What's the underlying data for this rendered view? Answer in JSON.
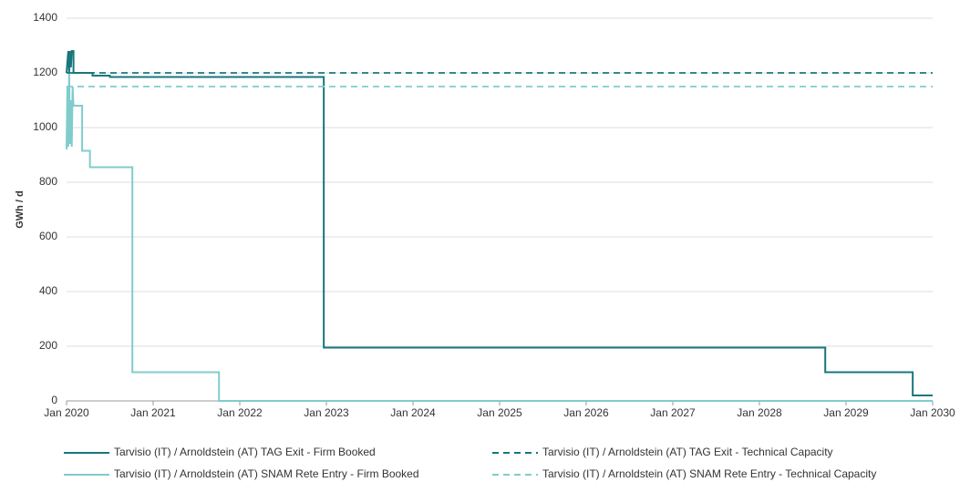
{
  "chart_data": {
    "type": "line",
    "y_label": "GWh / d",
    "xlim": [
      2020,
      2030
    ],
    "xticks": [
      {
        "value": 2020,
        "label": "Jan 2020"
      },
      {
        "value": 2021,
        "label": "Jan 2021"
      },
      {
        "value": 2022,
        "label": "Jan 2022"
      },
      {
        "value": 2023,
        "label": "Jan 2023"
      },
      {
        "value": 2024,
        "label": "Jan 2024"
      },
      {
        "value": 2025,
        "label": "Jan 2025"
      },
      {
        "value": 2026,
        "label": "Jan 2026"
      },
      {
        "value": 2027,
        "label": "Jan 2027"
      },
      {
        "value": 2028,
        "label": "Jan 2028"
      },
      {
        "value": 2029,
        "label": "Jan 2029"
      },
      {
        "value": 2030,
        "label": "Jan 2030"
      }
    ],
    "ylim": [
      0,
      1400
    ],
    "yticks": [
      0,
      200,
      400,
      600,
      800,
      1000,
      1200,
      1400
    ],
    "grid": true,
    "legend": "bottom",
    "series": [
      {
        "name": "Tarvisio (IT) / Arnoldstein (AT) TAG Exit - Firm Booked",
        "color": "#17777d",
        "dashed": false,
        "x": [
          2020,
          2020.02,
          2020.03,
          2020.04,
          2020.05,
          2020.06,
          2020.08,
          2020.08,
          2020.3,
          2020.3,
          2020.5,
          2020.5,
          2022.97,
          2022.97,
          2028.76,
          2028.76,
          2029.77,
          2029.77,
          2030
        ],
        "values": [
          1200,
          1280,
          1200,
          1280,
          1220,
          1280,
          1280,
          1200,
          1200,
          1190,
          1190,
          1185,
          1185,
          195,
          195,
          105,
          105,
          20,
          20
        ]
      },
      {
        "name": "Tarvisio (IT) / Arnoldstein (AT) SNAM Rete Entry - Firm Booked",
        "color": "#80cccc",
        "dashed": false,
        "x": [
          2020,
          2020.01,
          2020.02,
          2020.03,
          2020.04,
          2020.05,
          2020.06,
          2020.07,
          2020.08,
          2020.18,
          2020.18,
          2020.27,
          2020.27,
          2020.76,
          2020.76,
          2021.76,
          2021.76,
          2030
        ],
        "values": [
          920,
          1150,
          930,
          1200,
          940,
          1100,
          930,
          1150,
          1080,
          1080,
          915,
          915,
          855,
          855,
          105,
          105,
          0,
          0
        ]
      },
      {
        "name": "Tarvisio (IT) / Arnoldstein (AT) TAG Exit - Technical Capacity",
        "color": "#17777d",
        "dashed": true,
        "x": [
          2020,
          2030
        ],
        "values": [
          1200,
          1200
        ]
      },
      {
        "name": "Tarvisio (IT) / Arnoldstein (AT) SNAM Rete Entry - Technical Capacity",
        "color": "#80cccc",
        "dashed": true,
        "x": [
          2020,
          2030
        ],
        "values": [
          1150,
          1150
        ]
      }
    ]
  }
}
